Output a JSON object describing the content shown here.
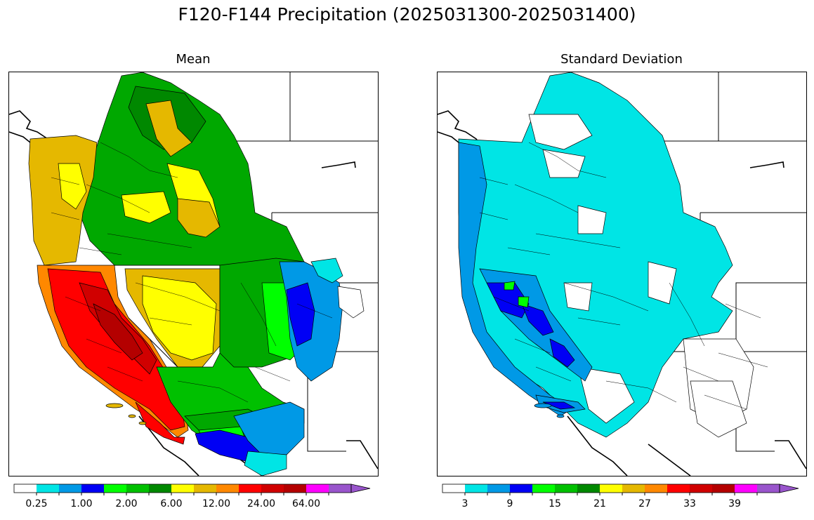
{
  "figure": {
    "title": "F120-F144 Precipitation (2025031300-2025031400)"
  },
  "panels": [
    {
      "id": "mean",
      "title": "Mean",
      "colorbar": {
        "colors": [
          "#ffffff",
          "#00e5e5",
          "#0099e6",
          "#0000f5",
          "#00ff00",
          "#00c000",
          "#008800",
          "#ffff00",
          "#e5b800",
          "#ff8800",
          "#ff0000",
          "#d00000",
          "#b40000",
          "#ff00ff",
          "#9955cc"
        ],
        "tick_labels": [
          "0.25",
          "1.00",
          "2.00",
          "6.00",
          "12.00",
          "24.00",
          "64.00"
        ],
        "extend": "max"
      }
    },
    {
      "id": "std",
      "title": "Standard Deviation",
      "colorbar": {
        "colors": [
          "#ffffff",
          "#00e5e5",
          "#0099e6",
          "#0000f5",
          "#00ff00",
          "#00c000",
          "#008800",
          "#ffff00",
          "#e5b800",
          "#ff8800",
          "#ff0000",
          "#d00000",
          "#b40000",
          "#ff00ff",
          "#9955cc"
        ],
        "tick_labels": [
          "3",
          "9",
          "15",
          "21",
          "27",
          "33",
          "39"
        ],
        "extend": "max"
      }
    }
  ]
}
